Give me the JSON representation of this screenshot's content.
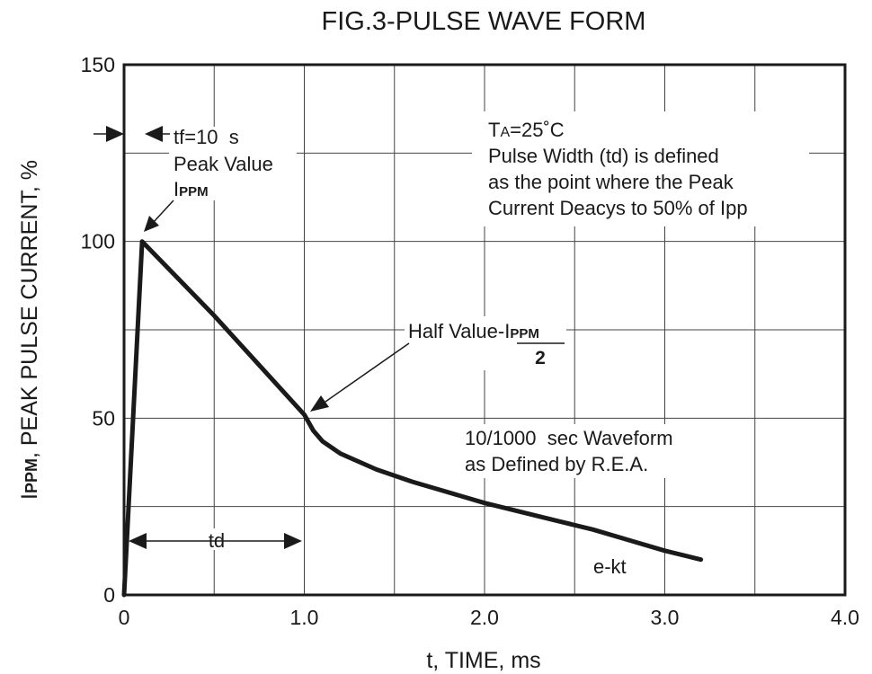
{
  "chart_data": {
    "type": "line",
    "title": "FIG.3-PULSE WAVE FORM",
    "xlabel": "t, TIME, ms",
    "ylabel_main": "I",
    "ylabel_sub": "PPM",
    "ylabel_rest": ", PEAK PULSE CURRENT, %",
    "xlim": [
      0,
      4.0
    ],
    "ylim": [
      0,
      150
    ],
    "grid": true,
    "x_ticks": [
      0,
      0.5,
      1.0,
      1.5,
      2.0,
      2.5,
      3.0,
      3.5,
      4.0
    ],
    "y_ticks": [
      0,
      25,
      50,
      75,
      100,
      125,
      150
    ],
    "x_tick_labels": [
      {
        "value": 0,
        "label": "0"
      },
      {
        "value": 1.0,
        "label": "1.0"
      },
      {
        "value": 2.0,
        "label": "2.0"
      },
      {
        "value": 3.0,
        "label": "3.0"
      },
      {
        "value": 4.0,
        "label": "4.0"
      }
    ],
    "y_tick_labels": [
      {
        "value": 0,
        "label": "0"
      },
      {
        "value": 50,
        "label": "50"
      },
      {
        "value": 100,
        "label": "100"
      },
      {
        "value": 150,
        "label": "150"
      }
    ],
    "series": [
      {
        "name": "10/1000 sec Waveform",
        "x": [
          0,
          0.1,
          0.5,
          1.0,
          1.05,
          1.1,
          1.2,
          1.4,
          1.6,
          1.8,
          2.0,
          2.2,
          2.4,
          2.6,
          2.8,
          3.0,
          3.2
        ],
        "y": [
          0,
          100,
          79,
          51,
          46.5,
          43.5,
          40,
          35.5,
          32,
          29,
          26,
          23.5,
          21,
          18.5,
          15.5,
          12.5,
          10
        ]
      }
    ],
    "annotations": {
      "tf_label": "tf=10  s",
      "peak_value": "Peak Value",
      "ippm_main": "I",
      "ippm_sub": "PPM",
      "conditions_ta_main": "T",
      "conditions_ta_sub": "A",
      "conditions_ta_rest": "=25˚C",
      "conditions_line2": "Pulse Width (td) is defined",
      "conditions_line3": "as the point where the Peak",
      "conditions_line4": "Current Deacys to 50% of Ipp",
      "half_value_prefix": "Half Value-I",
      "half_value_sub": "PPM",
      "half_value_denominator": "2",
      "waveform_line1": "10/1000  sec Waveform",
      "waveform_line2": "as Defined by R.E.A.",
      "td_label": "td",
      "ekt_label": "e-kt"
    }
  }
}
